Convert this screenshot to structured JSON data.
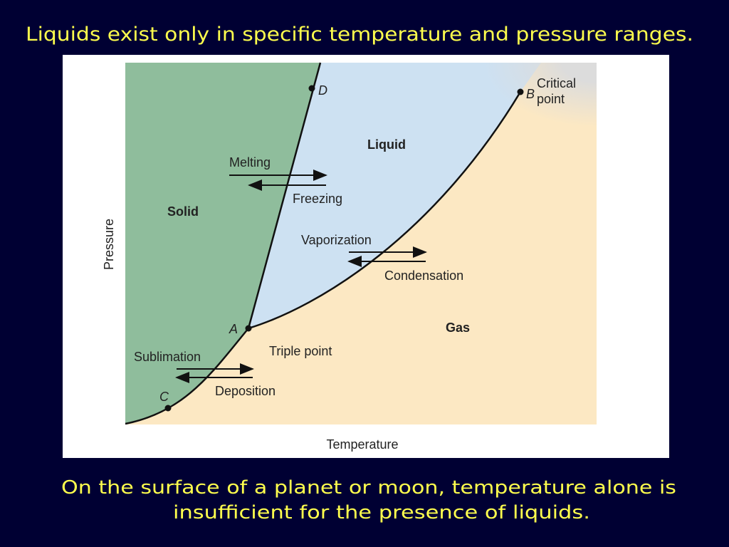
{
  "title": "Liquids exist only in specific temperature and pressure ranges.",
  "diagram": {
    "axis_labels": {
      "x": "Temperature",
      "y": "Pressure"
    },
    "regions": [
      "Solid",
      "Liquid",
      "Gas"
    ],
    "points": [
      "A",
      "B",
      "C",
      "D"
    ],
    "point_notes": {
      "triple_point": "Triple point",
      "critical_point": [
        "Critical",
        "point"
      ]
    },
    "transitions": [
      "Melting",
      "Freezing",
      "Vaporization",
      "Condensation",
      "Sublimation",
      "Deposition"
    ]
  },
  "caption": [
    "On the surface of a planet or moon, temperature alone is",
    "insufficient  for the presence of liquids."
  ]
}
